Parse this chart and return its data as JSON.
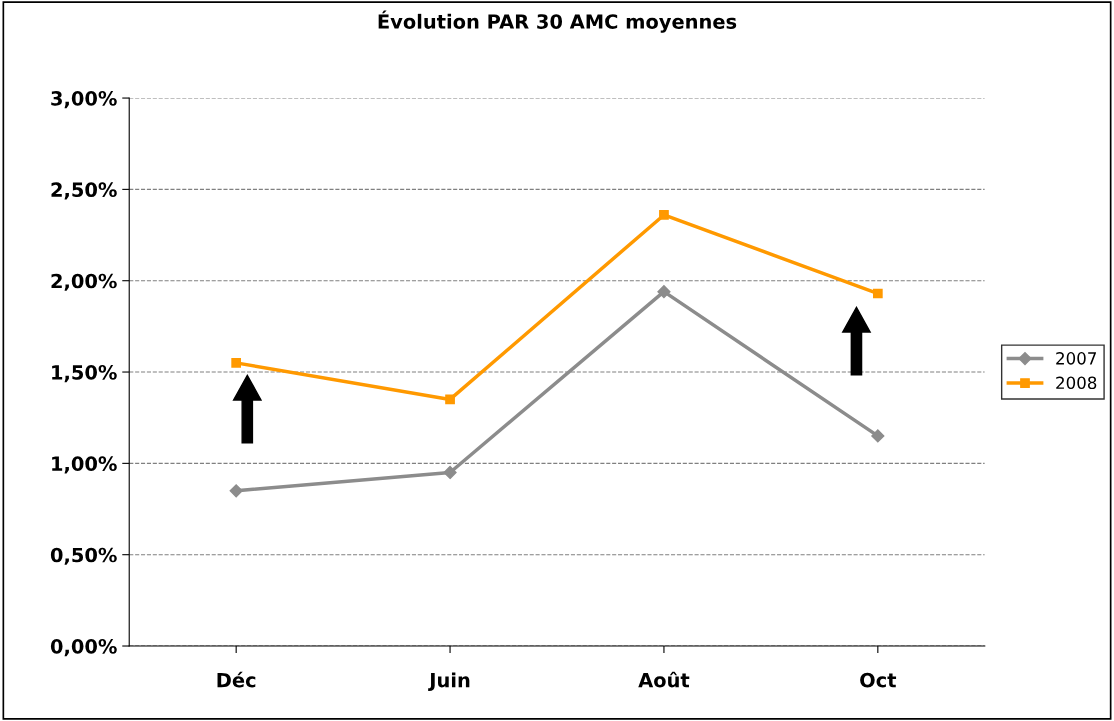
{
  "chart_data": {
    "type": "line",
    "title": "Évolution PAR 30 AMC moyennes",
    "categories": [
      "Déc",
      "Juin",
      "Août",
      "Oct"
    ],
    "series": [
      {
        "name": "2007",
        "color": "#8c8c8c",
        "marker": "diamond",
        "values": [
          0.85,
          0.95,
          1.94,
          1.15
        ]
      },
      {
        "name": "2008",
        "color": "#ff9900",
        "marker": "square",
        "values": [
          1.55,
          1.35,
          2.36,
          1.93
        ]
      }
    ],
    "ylim": [
      0,
      3
    ],
    "yticks": [
      {
        "value": 0,
        "label": "0,00%"
      },
      {
        "value": 0.5,
        "label": "0,50%"
      },
      {
        "value": 1,
        "label": "1,00%"
      },
      {
        "value": 1.5,
        "label": "1,50%"
      },
      {
        "value": 2,
        "label": "2,00%"
      },
      {
        "value": 2.5,
        "label": "2,50%"
      },
      {
        "value": 3,
        "label": "3,00%"
      }
    ],
    "grid": "y",
    "legend": "right",
    "line_style": "solid"
  }
}
